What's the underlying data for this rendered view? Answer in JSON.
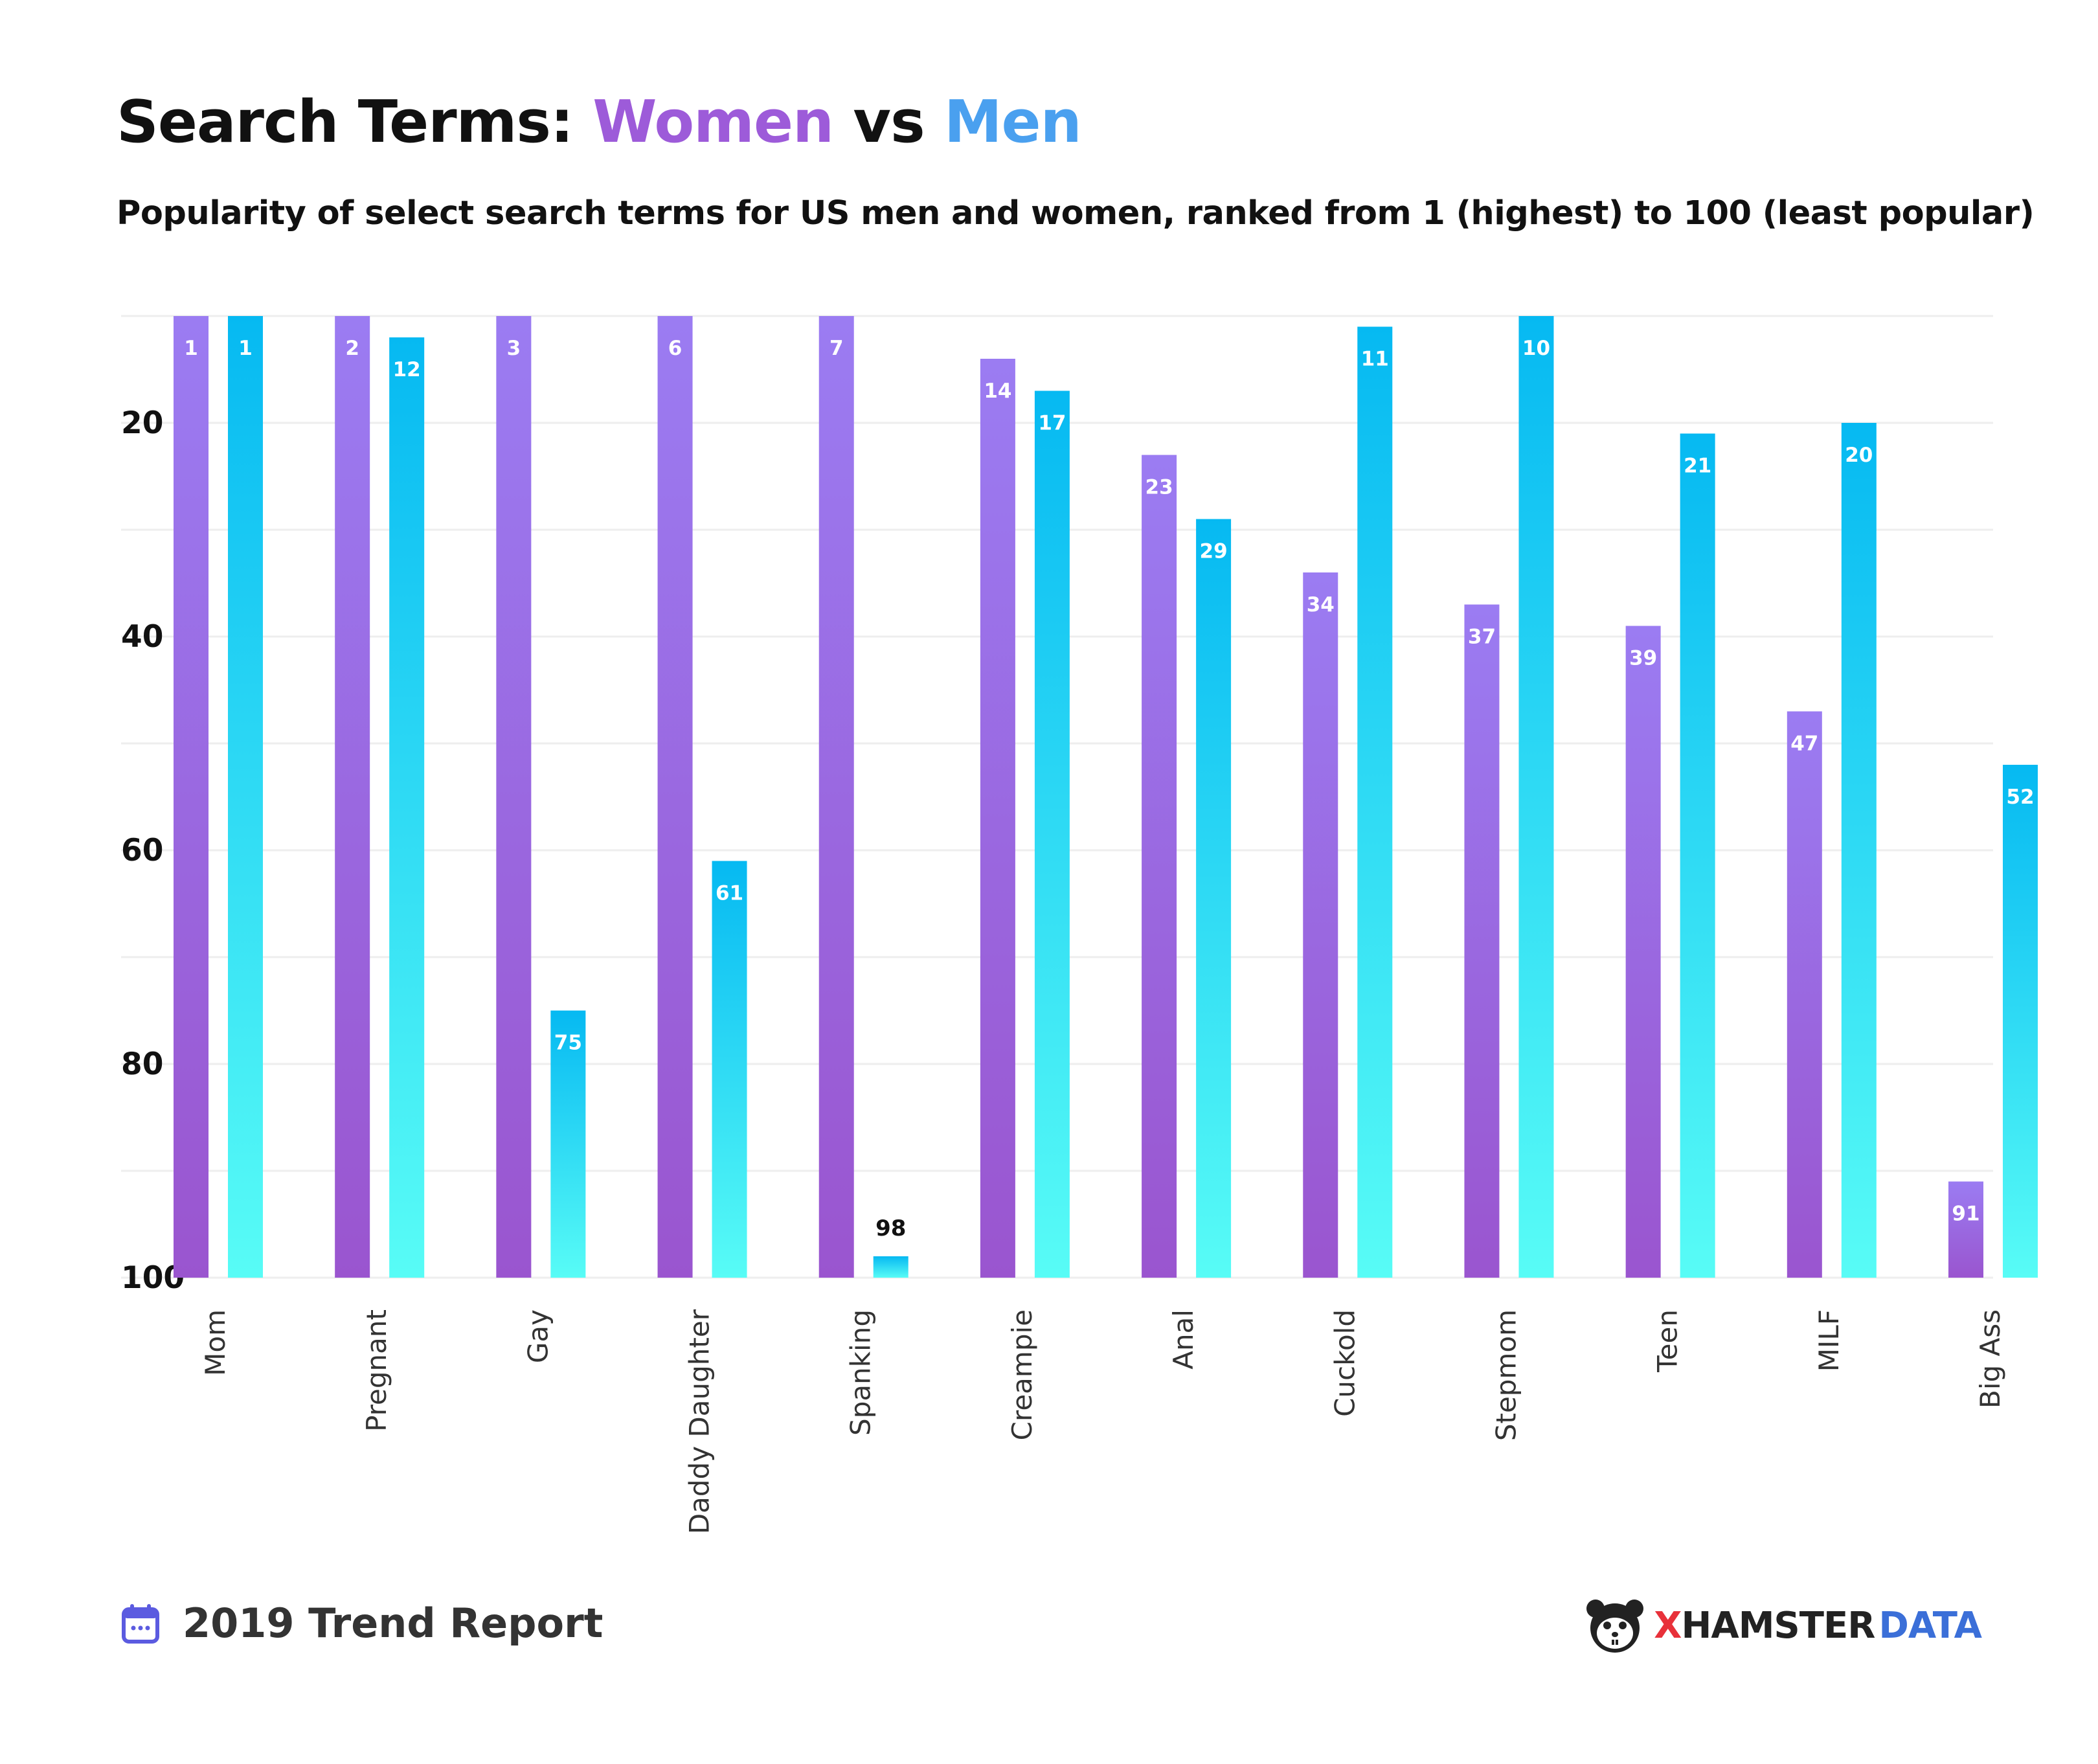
{
  "header": {
    "title_prefix": "Search Terms: ",
    "title_women": "Women",
    "title_vs": " vs ",
    "title_men": "Men",
    "subtitle": "Popularity of select search terms for US men and women, ranked from 1 (highest) to 100 (least popular)"
  },
  "footer": {
    "report": "2019 Trend Report",
    "brand_x": "X",
    "brand_hamster": "HAMSTER",
    "brand_data": "DATA"
  },
  "colors": {
    "women_top": "#9b7cf2",
    "women_bottom": "#9a55cf",
    "men_top": "#06b9f2",
    "men_bottom": "#58fcf6",
    "title_women": "#9d5bd9",
    "title_men": "#4aa0ef",
    "brand_red": "#e8313a",
    "brand_blue": "#3b6fd8"
  },
  "chart_data": {
    "type": "bar",
    "categories": [
      "Mom",
      "Pregnant",
      "Gay",
      "Daddy Daughter",
      "Spanking",
      "Creampie",
      "Anal",
      "Cuckold",
      "Stepmom",
      "Teen",
      "MILF",
      "Big Ass"
    ],
    "series": [
      {
        "name": "Women",
        "values": [
          1,
          2,
          3,
          6,
          7,
          14,
          23,
          34,
          37,
          39,
          47,
          91
        ]
      },
      {
        "name": "Men",
        "values": [
          1,
          12,
          75,
          61,
          98,
          17,
          29,
          11,
          10,
          21,
          20,
          52
        ]
      }
    ],
    "y_ticks": [
      "20",
      "40",
      "60",
      "80",
      "100"
    ],
    "ylim": [
      100,
      10
    ],
    "y_inverted": true,
    "grid": true
  }
}
